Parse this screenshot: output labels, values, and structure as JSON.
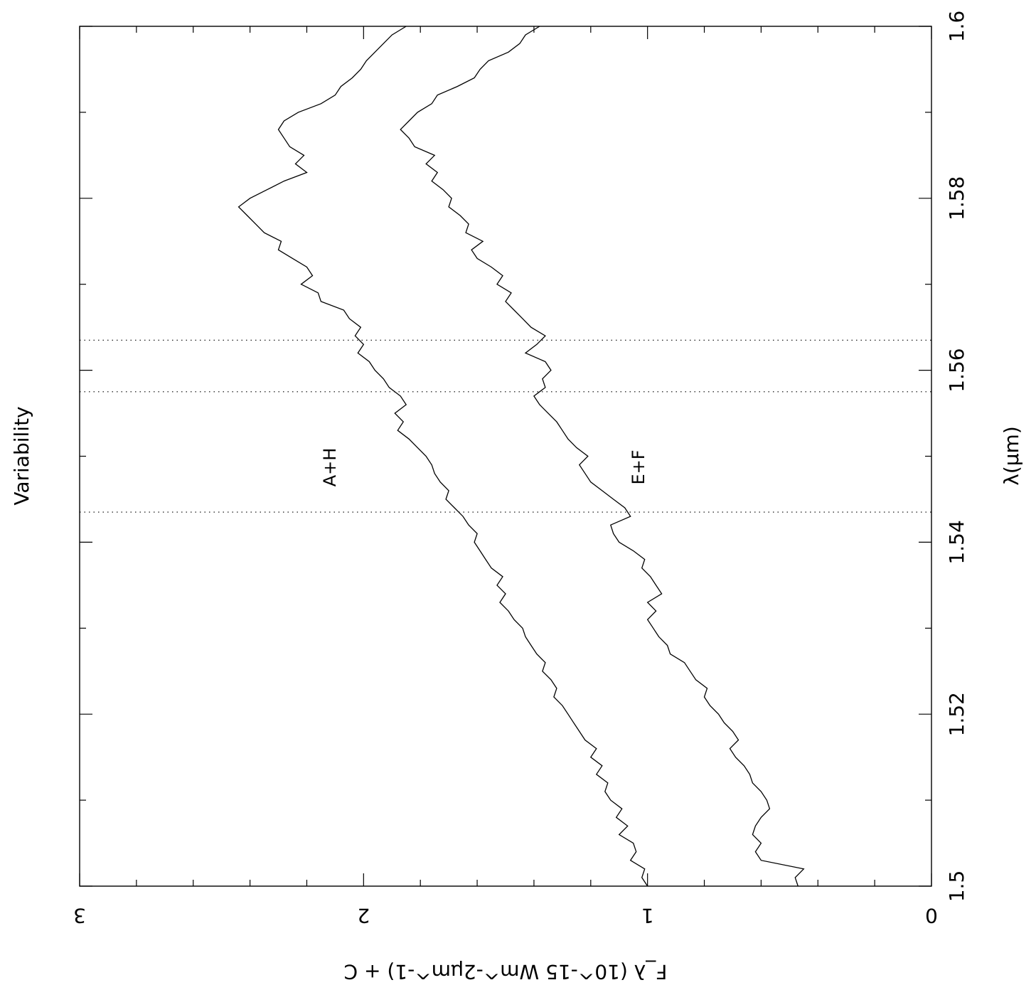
{
  "title": "Variability",
  "chart_data": {
    "type": "line",
    "title": "Variability",
    "xlabel": "λ(μm)",
    "ylabel": "F_λ (10^-15 Wm^-2μm^-1) + C",
    "xlim": [
      1.5,
      1.6
    ],
    "ylim": [
      0,
      3
    ],
    "x_ticks": [
      1.5,
      1.52,
      1.54,
      1.56,
      1.58,
      1.6
    ],
    "x_tick_labels": [
      "1.5",
      "1.52",
      "1.54",
      "1.56",
      "1.58",
      "1.6"
    ],
    "y_ticks": [
      0,
      1,
      2,
      3
    ],
    "y_tick_labels": [
      "0",
      "1",
      "2",
      "3"
    ],
    "grid": false,
    "orientation": "rotated 90° clockwise (wavelength runs bottom to top, flux right to left)",
    "reference_lines_x": [
      1.5435,
      1.5575,
      1.5635
    ],
    "series": [
      {
        "name": "A+H",
        "x": [
          1.5,
          1.501,
          1.502,
          1.503,
          1.504,
          1.505,
          1.506,
          1.507,
          1.508,
          1.509,
          1.51,
          1.511,
          1.512,
          1.513,
          1.514,
          1.515,
          1.516,
          1.517,
          1.518,
          1.519,
          1.52,
          1.521,
          1.522,
          1.523,
          1.524,
          1.525,
          1.526,
          1.527,
          1.528,
          1.529,
          1.53,
          1.531,
          1.532,
          1.533,
          1.534,
          1.535,
          1.536,
          1.537,
          1.538,
          1.539,
          1.54,
          1.541,
          1.542,
          1.543,
          1.544,
          1.545,
          1.546,
          1.547,
          1.548,
          1.549,
          1.55,
          1.551,
          1.552,
          1.553,
          1.554,
          1.555,
          1.556,
          1.557,
          1.558,
          1.559,
          1.56,
          1.561,
          1.562,
          1.563,
          1.564,
          1.565,
          1.566,
          1.567,
          1.568,
          1.569,
          1.57,
          1.571,
          1.572,
          1.573,
          1.574,
          1.575,
          1.576,
          1.577,
          1.578,
          1.579,
          1.58,
          1.581,
          1.582,
          1.583,
          1.584,
          1.585,
          1.586,
          1.587,
          1.588,
          1.589,
          1.59,
          1.591,
          1.592,
          1.593,
          1.594,
          1.595,
          1.596,
          1.597,
          1.598,
          1.599,
          1.6
        ],
        "y": [
          1.0,
          1.02,
          1.01,
          1.06,
          1.04,
          1.05,
          1.1,
          1.07,
          1.11,
          1.09,
          1.13,
          1.15,
          1.14,
          1.18,
          1.16,
          1.2,
          1.18,
          1.22,
          1.24,
          1.26,
          1.28,
          1.3,
          1.33,
          1.32,
          1.34,
          1.37,
          1.36,
          1.39,
          1.41,
          1.43,
          1.44,
          1.47,
          1.49,
          1.52,
          1.5,
          1.53,
          1.51,
          1.55,
          1.57,
          1.59,
          1.61,
          1.6,
          1.63,
          1.65,
          1.68,
          1.71,
          1.7,
          1.73,
          1.75,
          1.76,
          1.78,
          1.81,
          1.84,
          1.88,
          1.86,
          1.89,
          1.85,
          1.87,
          1.91,
          1.93,
          1.96,
          1.98,
          2.02,
          2.0,
          2.03,
          2.01,
          2.05,
          2.07,
          2.15,
          2.16,
          2.22,
          2.18,
          2.2,
          2.25,
          2.3,
          2.29,
          2.35,
          2.38,
          2.41,
          2.44,
          2.4,
          2.34,
          2.28,
          2.2,
          2.24,
          2.21,
          2.26,
          2.28,
          2.3,
          2.28,
          2.23,
          2.15,
          2.1,
          2.08,
          2.04,
          2.01,
          1.99,
          1.96,
          1.93,
          1.9,
          1.85
        ]
      },
      {
        "name": "E+F",
        "x": [
          1.5,
          1.501,
          1.502,
          1.503,
          1.504,
          1.505,
          1.506,
          1.507,
          1.508,
          1.509,
          1.51,
          1.511,
          1.512,
          1.513,
          1.514,
          1.515,
          1.516,
          1.517,
          1.518,
          1.519,
          1.52,
          1.521,
          1.522,
          1.523,
          1.524,
          1.525,
          1.526,
          1.527,
          1.528,
          1.529,
          1.53,
          1.531,
          1.532,
          1.533,
          1.534,
          1.535,
          1.536,
          1.537,
          1.538,
          1.539,
          1.54,
          1.541,
          1.542,
          1.543,
          1.544,
          1.545,
          1.546,
          1.547,
          1.548,
          1.549,
          1.55,
          1.551,
          1.552,
          1.553,
          1.554,
          1.555,
          1.556,
          1.557,
          1.558,
          1.559,
          1.56,
          1.561,
          1.562,
          1.563,
          1.564,
          1.565,
          1.566,
          1.567,
          1.568,
          1.569,
          1.57,
          1.571,
          1.572,
          1.573,
          1.574,
          1.575,
          1.576,
          1.577,
          1.578,
          1.579,
          1.58,
          1.581,
          1.582,
          1.583,
          1.584,
          1.585,
          1.586,
          1.587,
          1.588,
          1.589,
          1.59,
          1.591,
          1.592,
          1.593,
          1.594,
          1.595,
          1.596,
          1.597,
          1.598,
          1.599,
          1.6
        ],
        "y": [
          0.47,
          0.48,
          0.45,
          0.6,
          0.62,
          0.6,
          0.63,
          0.62,
          0.6,
          0.57,
          0.58,
          0.6,
          0.63,
          0.64,
          0.66,
          0.69,
          0.71,
          0.68,
          0.7,
          0.73,
          0.75,
          0.78,
          0.8,
          0.79,
          0.83,
          0.85,
          0.87,
          0.92,
          0.93,
          0.96,
          0.98,
          1.0,
          0.97,
          1.0,
          0.95,
          0.97,
          0.99,
          1.02,
          1.01,
          1.05,
          1.1,
          1.12,
          1.13,
          1.06,
          1.08,
          1.12,
          1.16,
          1.2,
          1.22,
          1.24,
          1.21,
          1.25,
          1.28,
          1.3,
          1.32,
          1.35,
          1.38,
          1.4,
          1.36,
          1.37,
          1.34,
          1.36,
          1.43,
          1.39,
          1.36,
          1.41,
          1.44,
          1.47,
          1.5,
          1.48,
          1.53,
          1.51,
          1.55,
          1.6,
          1.62,
          1.58,
          1.64,
          1.63,
          1.66,
          1.7,
          1.69,
          1.72,
          1.76,
          1.74,
          1.78,
          1.75,
          1.82,
          1.84,
          1.87,
          1.84,
          1.81,
          1.76,
          1.74,
          1.67,
          1.61,
          1.59,
          1.56,
          1.49,
          1.45,
          1.43,
          1.38
        ]
      }
    ]
  }
}
